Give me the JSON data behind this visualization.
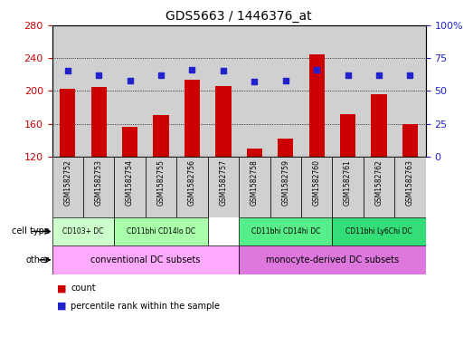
{
  "title": "GDS5663 / 1446376_at",
  "samples": [
    "GSM1582752",
    "GSM1582753",
    "GSM1582754",
    "GSM1582755",
    "GSM1582756",
    "GSM1582757",
    "GSM1582758",
    "GSM1582759",
    "GSM1582760",
    "GSM1582761",
    "GSM1582762",
    "GSM1582763"
  ],
  "bar_values": [
    202,
    205,
    156,
    170,
    213,
    206,
    130,
    142,
    244,
    172,
    196,
    159
  ],
  "dot_values": [
    65,
    62,
    58,
    62,
    66,
    65,
    57,
    58,
    66,
    62,
    62,
    62
  ],
  "ylim_left": [
    120,
    280
  ],
  "ylim_right": [
    0,
    100
  ],
  "yticks_left": [
    120,
    160,
    200,
    240,
    280
  ],
  "yticks_right": [
    0,
    25,
    50,
    75,
    100
  ],
  "bar_color": "#cc0000",
  "dot_color": "#2222cc",
  "sample_bg_color": "#d0d0d0",
  "ct_groups": [
    {
      "label": "CD103+ DC",
      "start": 0,
      "end": 2,
      "color": "#ccffcc"
    },
    {
      "label": "CD11bhi CD14lo DC",
      "start": 2,
      "end": 5,
      "color": "#aaffaa"
    },
    {
      "label": "CD11bhi CD14hi DC",
      "start": 6,
      "end": 9,
      "color": "#55ee88"
    },
    {
      "label": "CD11bhi Ly6Chi DC",
      "start": 9,
      "end": 12,
      "color": "#33dd77"
    }
  ],
  "other_groups": [
    {
      "label": "conventional DC subsets",
      "start": 0,
      "end": 6,
      "color": "#ffaaff"
    },
    {
      "label": "monocyte-derived DC subsets",
      "start": 6,
      "end": 12,
      "color": "#dd77dd"
    }
  ],
  "legend_count_color": "#cc0000",
  "legend_dot_color": "#2222cc"
}
